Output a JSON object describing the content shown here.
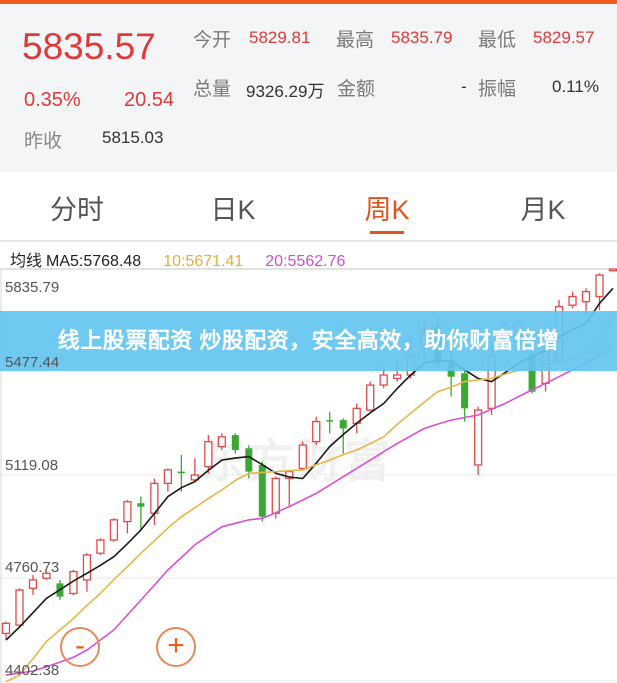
{
  "quote": {
    "price": "5835.57",
    "change_pct": "0.35%",
    "change": "20.54",
    "prev_close_label": "昨收",
    "prev_close": "5815.03",
    "open_label": "今开",
    "open": "5829.81",
    "high_label": "最高",
    "high": "5835.79",
    "low_label": "最低",
    "low": "5829.57",
    "volume_label": "总量",
    "volume": "9326.29万",
    "amount_label": "金额",
    "amount": "-",
    "amplitude_label": "振幅",
    "amplitude": "0.11%"
  },
  "tabs": [
    {
      "label": "分时",
      "active": false
    },
    {
      "label": "日K",
      "active": false
    },
    {
      "label": "周K",
      "active": true
    },
    {
      "label": "月K",
      "active": false
    }
  ],
  "ma_legend": {
    "title": "均线",
    "ma5": "MA5:5768.48",
    "ma10": "10:5671.41",
    "ma20": "20:5562.76"
  },
  "banner": "线上股票配资 炒股配资，安全高效，助你财富倍增",
  "watermark": "东方财富",
  "zoom_controls": {
    "minus": "-",
    "plus": "+"
  },
  "colors": {
    "up": "#e04a4a",
    "down": "#3aa832",
    "ma5": "#1a1a1a",
    "ma10": "#e8b548",
    "ma20": "#d94fd6",
    "accent": "#e5531d",
    "banner": "#64c4f0"
  },
  "chart_data": {
    "type": "candlestick",
    "ylim": [
      4402.38,
      5835.79
    ],
    "y_ticks": [
      "5835.79",
      "5477.44",
      "5119.08",
      "4760.73",
      "4402.38"
    ],
    "grid": true,
    "candles": [
      [
        4568,
        4609,
        4545,
        4603
      ],
      [
        4597,
        4725,
        4590,
        4719
      ],
      [
        4725,
        4771,
        4702,
        4754
      ],
      [
        4760,
        4783,
        4754,
        4777
      ],
      [
        4742,
        4754,
        4684,
        4696
      ],
      [
        4707,
        4789,
        4700,
        4783
      ],
      [
        4754,
        4847,
        4713,
        4841
      ],
      [
        4847,
        4899,
        4841,
        4893
      ],
      [
        4893,
        4969,
        4887,
        4963
      ],
      [
        4957,
        5032,
        4916,
        5026
      ],
      [
        5021,
        5044,
        4928,
        5009
      ],
      [
        4986,
        5107,
        4945,
        5090
      ],
      [
        5090,
        5142,
        5061,
        5137
      ],
      [
        5131,
        5189,
        5061,
        5125
      ],
      [
        5102,
        5177,
        5096,
        5119
      ],
      [
        5148,
        5258,
        5125,
        5235
      ],
      [
        5218,
        5264,
        5206,
        5252
      ],
      [
        5258,
        5264,
        5194,
        5206
      ],
      [
        5212,
        5223,
        5107,
        5131
      ],
      [
        5154,
        5166,
        4957,
        4974
      ],
      [
        4986,
        5113,
        4968,
        5107
      ],
      [
        5107,
        5137,
        5009,
        5131
      ],
      [
        5142,
        5235,
        5137,
        5223
      ],
      [
        5235,
        5322,
        5223,
        5305
      ],
      [
        5310,
        5339,
        5264,
        5305
      ],
      [
        5310,
        5316,
        5194,
        5281
      ],
      [
        5299,
        5368,
        5264,
        5351
      ],
      [
        5345,
        5444,
        5339,
        5432
      ],
      [
        5432,
        5502,
        5421,
        5467
      ],
      [
        5455,
        5519,
        5444,
        5467
      ],
      [
        5467,
        5600,
        5455,
        5531
      ],
      [
        5571,
        5653,
        5519,
        5618
      ],
      [
        5635,
        5664,
        5496,
        5508
      ],
      [
        5519,
        5554,
        5392,
        5461
      ],
      [
        5473,
        5484,
        5305,
        5351
      ],
      [
        5154,
        5357,
        5119,
        5345
      ],
      [
        5351,
        5577,
        5328,
        5531
      ],
      [
        5589,
        5653,
        5566,
        5641
      ],
      [
        5589,
        5658,
        5577,
        5647
      ],
      [
        5542,
        5554,
        5403,
        5409
      ],
      [
        5438,
        5566,
        5409,
        5548
      ],
      [
        5519,
        5728,
        5508,
        5705
      ],
      [
        5710,
        5757,
        5699,
        5740
      ],
      [
        5722,
        5769,
        5670,
        5757
      ],
      [
        5740,
        5821,
        5693,
        5815
      ],
      [
        5829.81,
        5835.79,
        5829.57,
        5835.57
      ]
    ],
    "candle_fields": [
      "open",
      "high",
      "low",
      "close"
    ],
    "series": [
      {
        "name": "MA5",
        "values": [
          4545,
          4590,
          4640,
          4690,
          4720,
          4750,
          4777,
          4805,
          4835,
          4880,
          4928,
          4985,
          5044,
          5075,
          5096,
          5135,
          5171,
          5178,
          5183,
          5155,
          5125,
          5112,
          5107,
          5160,
          5218,
          5260,
          5299,
          5335,
          5368,
          5420,
          5467,
          5508,
          5519,
          5513,
          5485,
          5455,
          5444,
          5475,
          5508,
          5530,
          5554,
          5600,
          5625,
          5647,
          5716,
          5768.48
        ]
      },
      {
        "name": "10",
        "values": [
          4400,
          4423,
          4480,
          4540,
          4580,
          4620,
          4665,
          4707,
          4755,
          4800,
          4847,
          4890,
          4935,
          4974,
          5005,
          5037,
          5067,
          5100,
          5125,
          5128,
          5131,
          5134,
          5137,
          5155,
          5171,
          5190,
          5206,
          5228,
          5252,
          5295,
          5334,
          5372,
          5409,
          5425,
          5444,
          5450,
          5455,
          5470,
          5484,
          5496,
          5505,
          5513,
          5525,
          5545,
          5589,
          5671.41
        ]
      },
      {
        "name": "20",
        "values": [
          4423,
          4430,
          4437,
          4452,
          4468,
          4485,
          4510,
          4545,
          4580,
          4632,
          4684,
          4736,
          4789,
          4832,
          4876,
          4908,
          4939,
          4951,
          4963,
          4968,
          4988,
          5009,
          5032,
          5055,
          5084,
          5113,
          5142,
          5171,
          5200,
          5229,
          5255,
          5281,
          5296,
          5310,
          5319,
          5328,
          5348,
          5368,
          5392,
          5415,
          5438,
          5461,
          5485,
          5508,
          5537,
          5562.76
        ]
      }
    ]
  }
}
